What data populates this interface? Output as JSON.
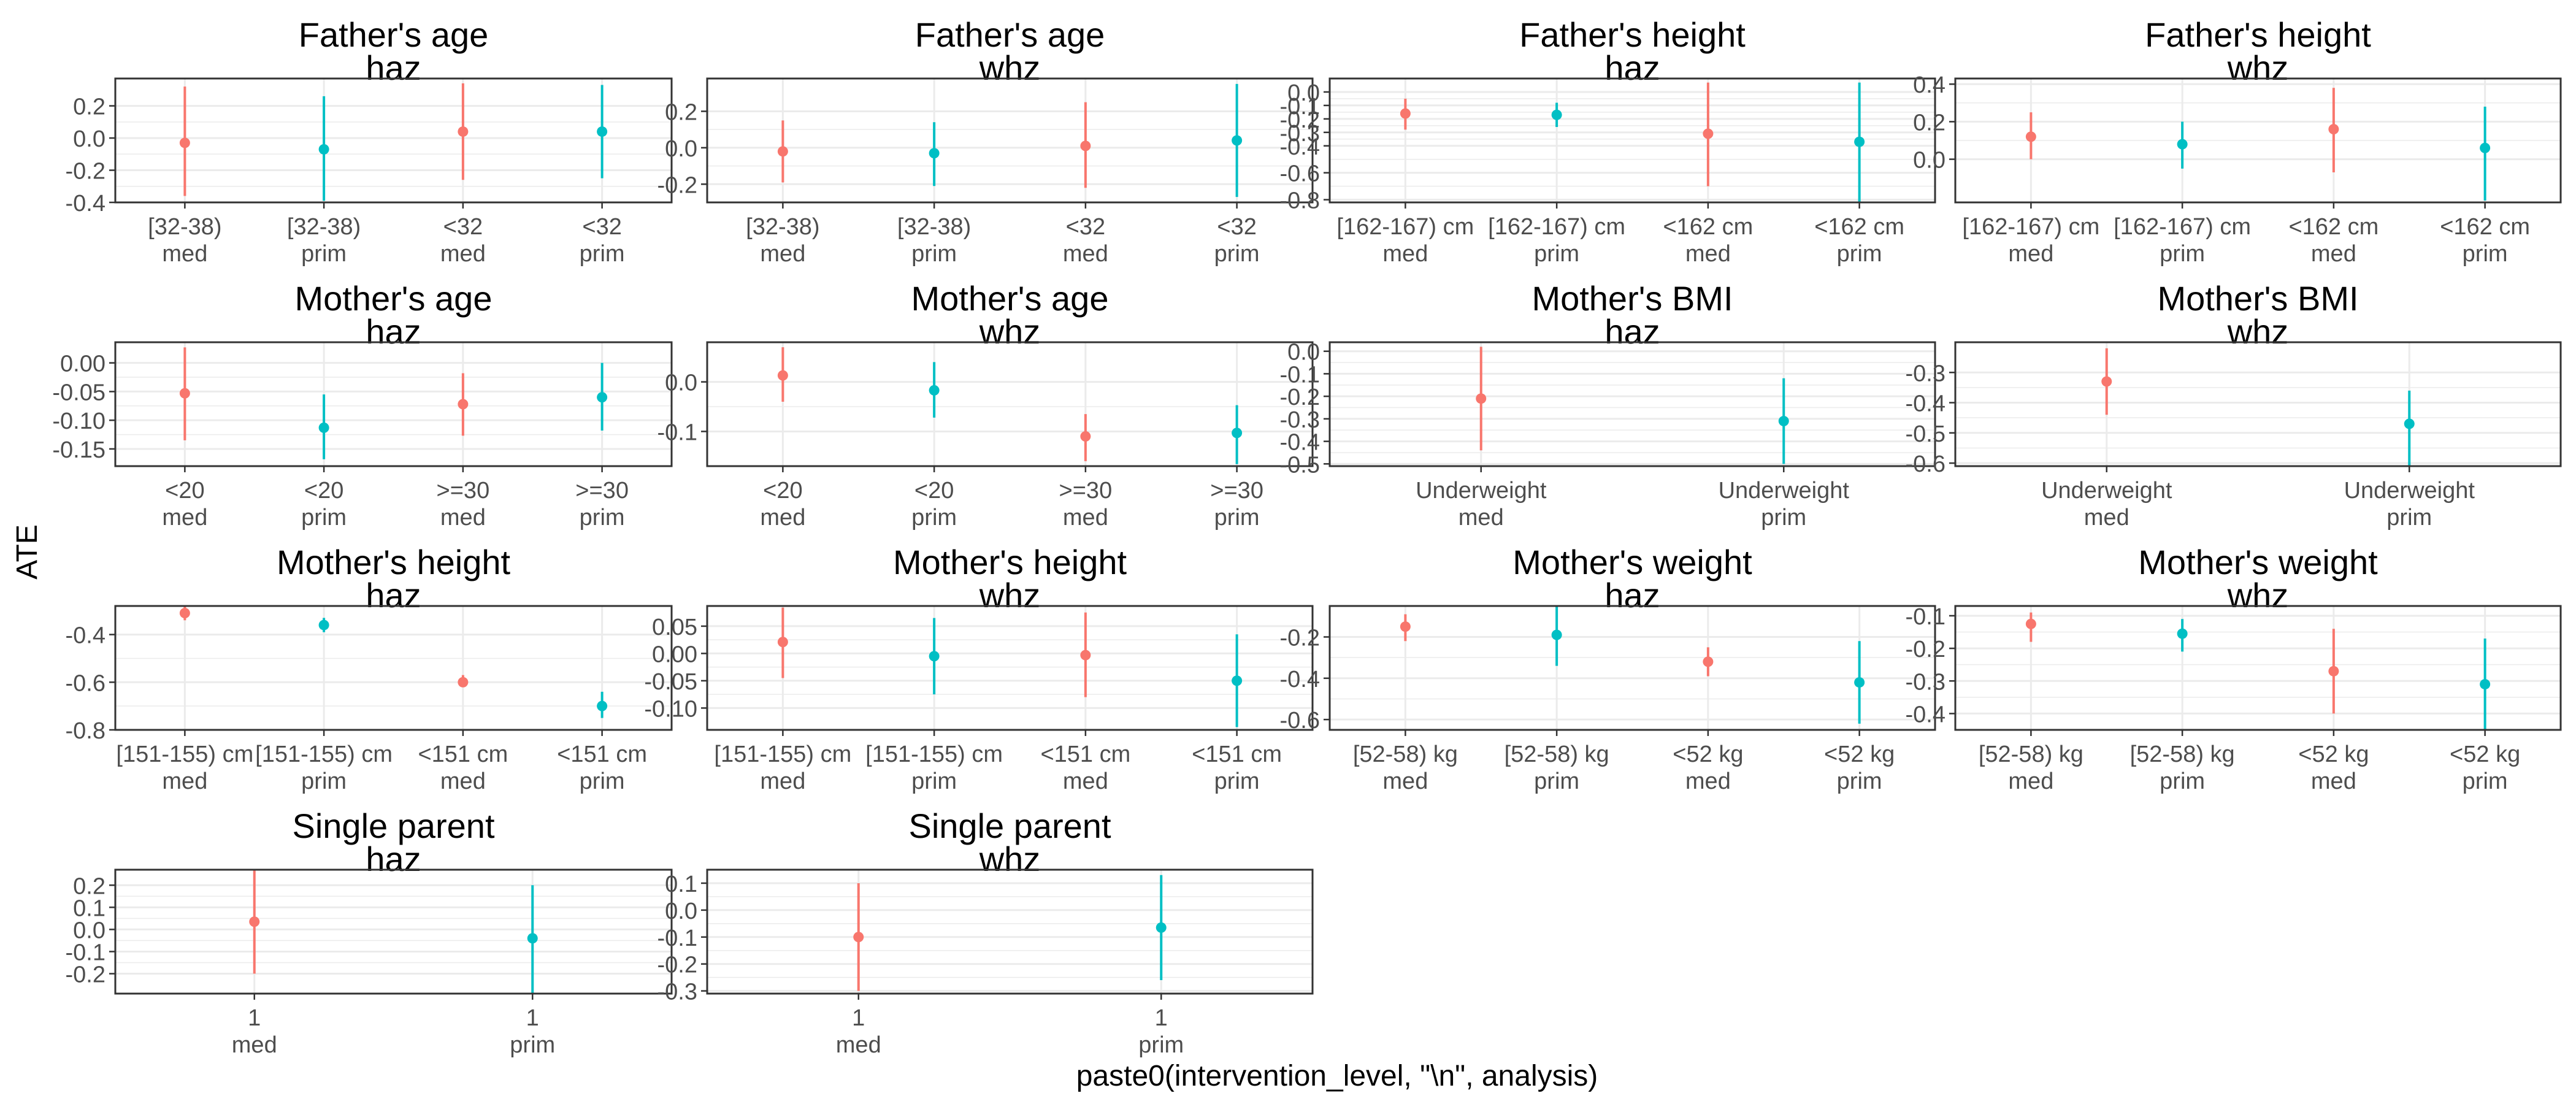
{
  "figure": {
    "ylabel": "ATE",
    "xlabel": "paste0(intervention_level, \"\\n\", analysis)"
  },
  "colors": {
    "med": "#F8766D",
    "prim": "#00BFC4",
    "grid": "#EBEBEB",
    "border": "#333333",
    "text": "#4D4D4D"
  },
  "chart_data": [
    {
      "type": "pointrange",
      "title": [
        "Father's age",
        "haz"
      ],
      "categories": [
        [
          "[32-38)",
          "med"
        ],
        [
          "[32-38)",
          "prim"
        ],
        [
          "<32",
          "med"
        ],
        [
          "<32",
          "prim"
        ]
      ],
      "points": [
        {
          "y": -0.03,
          "lo": -0.36,
          "hi": 0.32
        },
        {
          "y": -0.07,
          "lo": -0.39,
          "hi": 0.26
        },
        {
          "y": 0.04,
          "lo": -0.26,
          "hi": 0.34
        },
        {
          "y": 0.04,
          "lo": -0.25,
          "hi": 0.33
        }
      ],
      "ylim": [
        -0.4,
        0.37
      ],
      "yticks": [
        -0.4,
        -0.2,
        0.0,
        0.2
      ],
      "yticklabels": [
        "-0.4",
        "-0.2",
        "0.0",
        "0.2"
      ]
    },
    {
      "type": "pointrange",
      "title": [
        "Father's age",
        "whz"
      ],
      "categories": [
        [
          "[32-38)",
          "med"
        ],
        [
          "[32-38)",
          "prim"
        ],
        [
          "<32",
          "med"
        ],
        [
          "<32",
          "prim"
        ]
      ],
      "points": [
        {
          "y": -0.02,
          "lo": -0.19,
          "hi": 0.15
        },
        {
          "y": -0.03,
          "lo": -0.21,
          "hi": 0.14
        },
        {
          "y": 0.01,
          "lo": -0.22,
          "hi": 0.25
        },
        {
          "y": 0.04,
          "lo": -0.27,
          "hi": 0.35
        }
      ],
      "ylim": [
        -0.3,
        0.38
      ],
      "yticks": [
        -0.2,
        0.0,
        0.2
      ],
      "yticklabels": [
        "-0.2",
        "0.0",
        "0.2"
      ]
    },
    {
      "type": "pointrange",
      "title": [
        "Father's height",
        "haz"
      ],
      "categories": [
        [
          "[162-167) cm",
          "med"
        ],
        [
          "[162-167) cm",
          "prim"
        ],
        [
          "<162 cm",
          "med"
        ],
        [
          "<162 cm",
          "prim"
        ]
      ],
      "points": [
        {
          "y": -0.16,
          "lo": -0.28,
          "hi": -0.05
        },
        {
          "y": -0.17,
          "lo": -0.26,
          "hi": -0.08
        },
        {
          "y": -0.31,
          "lo": -0.7,
          "hi": 0.07
        },
        {
          "y": -0.37,
          "lo": -0.82,
          "hi": 0.07
        }
      ],
      "ylim": [
        -0.82,
        0.1
      ],
      "yticks": [
        -0.8,
        -0.6,
        -0.4,
        -0.3,
        -0.2,
        -0.1,
        0.0
      ],
      "yticklabels": [
        "-0.8",
        "-0.6",
        "-0.4",
        "-0.3",
        "-0.2",
        "-0.1",
        "0.0"
      ]
    },
    {
      "type": "pointrange",
      "title": [
        "Father's height",
        "whz"
      ],
      "categories": [
        [
          "[162-167) cm",
          "med"
        ],
        [
          "[162-167) cm",
          "prim"
        ],
        [
          "<162 cm",
          "med"
        ],
        [
          "<162 cm",
          "prim"
        ]
      ],
      "points": [
        {
          "y": 0.12,
          "lo": 0.0,
          "hi": 0.25
        },
        {
          "y": 0.08,
          "lo": -0.05,
          "hi": 0.2
        },
        {
          "y": 0.16,
          "lo": -0.07,
          "hi": 0.38
        },
        {
          "y": 0.06,
          "lo": -0.22,
          "hi": 0.28
        }
      ],
      "ylim": [
        -0.23,
        0.43
      ],
      "yticks": [
        0.0,
        0.2,
        0.4
      ],
      "yticklabels": [
        "0.0",
        "0.2",
        "0.4"
      ]
    },
    {
      "type": "pointrange",
      "title": [
        "Mother's age",
        "haz"
      ],
      "categories": [
        [
          "<20",
          "med"
        ],
        [
          "<20",
          "prim"
        ],
        [
          ">=30",
          "med"
        ],
        [
          ">=30",
          "prim"
        ]
      ],
      "points": [
        {
          "y": -0.053,
          "lo": -0.135,
          "hi": 0.027
        },
        {
          "y": -0.113,
          "lo": -0.168,
          "hi": -0.055
        },
        {
          "y": -0.072,
          "lo": -0.127,
          "hi": -0.018
        },
        {
          "y": -0.06,
          "lo": -0.118,
          "hi": 0.0
        }
      ],
      "ylim": [
        -0.18,
        0.036
      ],
      "yticks": [
        -0.15,
        -0.1,
        -0.05,
        0.0
      ],
      "yticklabels": [
        "-0.15",
        "-0.10",
        "-0.05",
        "0.00"
      ]
    },
    {
      "type": "pointrange",
      "title": [
        "Mother's age",
        "whz"
      ],
      "categories": [
        [
          "<20",
          "med"
        ],
        [
          "<20",
          "prim"
        ],
        [
          ">=30",
          "med"
        ],
        [
          ">=30",
          "prim"
        ]
      ],
      "points": [
        {
          "y": 0.013,
          "lo": -0.04,
          "hi": 0.07
        },
        {
          "y": -0.017,
          "lo": -0.072,
          "hi": 0.04
        },
        {
          "y": -0.11,
          "lo": -0.16,
          "hi": -0.065
        },
        {
          "y": -0.103,
          "lo": -0.166,
          "hi": -0.047
        }
      ],
      "ylim": [
        -0.17,
        0.08
      ],
      "yticks": [
        -0.1,
        0.0
      ],
      "yticklabels": [
        "-0.1",
        "0.0"
      ]
    },
    {
      "type": "pointrange",
      "title": [
        "Mother's BMI",
        "haz"
      ],
      "categories": [
        [
          "Underweight",
          "med"
        ],
        [
          "Underweight",
          "prim"
        ]
      ],
      "points": [
        {
          "y": -0.21,
          "lo": -0.44,
          "hi": 0.02
        },
        {
          "y": -0.31,
          "lo": -0.5,
          "hi": -0.12
        }
      ],
      "ylim": [
        -0.51,
        0.04
      ],
      "yticks": [
        -0.5,
        -0.4,
        -0.3,
        -0.2,
        -0.1,
        0.0
      ],
      "yticklabels": [
        "-0.5",
        "-0.4",
        "-0.3",
        "-0.2",
        "-0.1",
        "0.0"
      ]
    },
    {
      "type": "pointrange",
      "title": [
        "Mother's BMI",
        "whz"
      ],
      "categories": [
        [
          "Underweight",
          "med"
        ],
        [
          "Underweight",
          "prim"
        ]
      ],
      "points": [
        {
          "y": -0.33,
          "lo": -0.44,
          "hi": -0.22
        },
        {
          "y": -0.47,
          "lo": -0.61,
          "hi": -0.36
        }
      ],
      "ylim": [
        -0.61,
        -0.2
      ],
      "yticks": [
        -0.6,
        -0.5,
        -0.4,
        -0.3
      ],
      "yticklabels": [
        "-0.6",
        "-0.5",
        "-0.4",
        "-0.3"
      ]
    },
    {
      "type": "pointrange",
      "title": [
        "Mother's height",
        "haz"
      ],
      "categories": [
        [
          "[151-155) cm",
          "med"
        ],
        [
          "[151-155) cm",
          "prim"
        ],
        [
          "<151 cm",
          "med"
        ],
        [
          "<151 cm",
          "prim"
        ]
      ],
      "points": [
        {
          "y": -0.31,
          "lo": -0.34,
          "hi": -0.28
        },
        {
          "y": -0.36,
          "lo": -0.39,
          "hi": -0.33
        },
        {
          "y": -0.6,
          "lo": -0.62,
          "hi": -0.57
        },
        {
          "y": -0.7,
          "lo": -0.75,
          "hi": -0.64
        }
      ],
      "ylim": [
        -0.8,
        -0.28
      ],
      "yticks": [
        -0.8,
        -0.6,
        -0.4
      ],
      "yticklabels": [
        "-0.8",
        "-0.6",
        "-0.4"
      ]
    },
    {
      "type": "pointrange",
      "title": [
        "Mother's height",
        "whz"
      ],
      "categories": [
        [
          "[151-155) cm",
          "med"
        ],
        [
          "[151-155) cm",
          "prim"
        ],
        [
          "<151 cm",
          "med"
        ],
        [
          "<151 cm",
          "prim"
        ]
      ],
      "points": [
        {
          "y": 0.021,
          "lo": -0.045,
          "hi": 0.084
        },
        {
          "y": -0.005,
          "lo": -0.075,
          "hi": 0.065
        },
        {
          "y": -0.003,
          "lo": -0.08,
          "hi": 0.075
        },
        {
          "y": -0.05,
          "lo": -0.135,
          "hi": 0.035
        }
      ],
      "ylim": [
        -0.14,
        0.087
      ],
      "yticks": [
        -0.1,
        -0.05,
        0.0,
        0.05
      ],
      "yticklabels": [
        "-0.10",
        "-0.05",
        "0.00",
        "0.05"
      ]
    },
    {
      "type": "pointrange",
      "title": [
        "Mother's weight",
        "haz"
      ],
      "categories": [
        [
          "[52-58) kg",
          "med"
        ],
        [
          "[52-58) kg",
          "prim"
        ],
        [
          "<52 kg",
          "med"
        ],
        [
          "<52 kg",
          "prim"
        ]
      ],
      "points": [
        {
          "y": -0.15,
          "lo": -0.22,
          "hi": -0.09
        },
        {
          "y": -0.19,
          "lo": -0.34,
          "hi": -0.05
        },
        {
          "y": -0.32,
          "lo": -0.39,
          "hi": -0.25
        },
        {
          "y": -0.42,
          "lo": -0.62,
          "hi": -0.22
        }
      ],
      "ylim": [
        -0.65,
        -0.05
      ],
      "yticks": [
        -0.6,
        -0.4,
        -0.2
      ],
      "yticklabels": [
        "-0.6",
        "-0.4",
        "-0.2"
      ]
    },
    {
      "type": "pointrange",
      "title": [
        "Mother's weight",
        "whz"
      ],
      "categories": [
        [
          "[52-58) kg",
          "med"
        ],
        [
          "[52-58) kg",
          "prim"
        ],
        [
          "<52 kg",
          "med"
        ],
        [
          "<52 kg",
          "prim"
        ]
      ],
      "points": [
        {
          "y": -0.125,
          "lo": -0.18,
          "hi": -0.09
        },
        {
          "y": -0.155,
          "lo": -0.21,
          "hi": -0.11
        },
        {
          "y": -0.27,
          "lo": -0.4,
          "hi": -0.14
        },
        {
          "y": -0.31,
          "lo": -0.45,
          "hi": -0.17
        }
      ],
      "ylim": [
        -0.45,
        -0.07
      ],
      "yticks": [
        -0.4,
        -0.3,
        -0.2,
        -0.1
      ],
      "yticklabels": [
        "-0.4",
        "-0.3",
        "-0.2",
        "-0.1"
      ]
    },
    {
      "type": "pointrange",
      "title": [
        "Single parent",
        "haz"
      ],
      "categories": [
        [
          "1",
          "med"
        ],
        [
          "1",
          "prim"
        ]
      ],
      "points": [
        {
          "y": 0.035,
          "lo": -0.2,
          "hi": 0.27
        },
        {
          "y": -0.04,
          "lo": -0.3,
          "hi": 0.2
        }
      ],
      "ylim": [
        -0.29,
        0.27
      ],
      "yticks": [
        -0.2,
        -0.1,
        0.0,
        0.1,
        0.2
      ],
      "yticklabels": [
        "-0.2",
        "-0.1",
        "0.0",
        "0.1",
        "0.2"
      ]
    },
    {
      "type": "pointrange",
      "title": [
        "Single parent",
        "whz"
      ],
      "categories": [
        [
          "1",
          "med"
        ],
        [
          "1",
          "prim"
        ]
      ],
      "points": [
        {
          "y": -0.1,
          "lo": -0.3,
          "hi": 0.1
        },
        {
          "y": -0.065,
          "lo": -0.26,
          "hi": 0.13
        }
      ],
      "ylim": [
        -0.31,
        0.15
      ],
      "yticks": [
        -0.3,
        -0.2,
        -0.1,
        0.0,
        0.1
      ],
      "yticklabels": [
        "-0.3",
        "-0.2",
        "-0.1",
        "0.0",
        "0.1"
      ]
    }
  ]
}
